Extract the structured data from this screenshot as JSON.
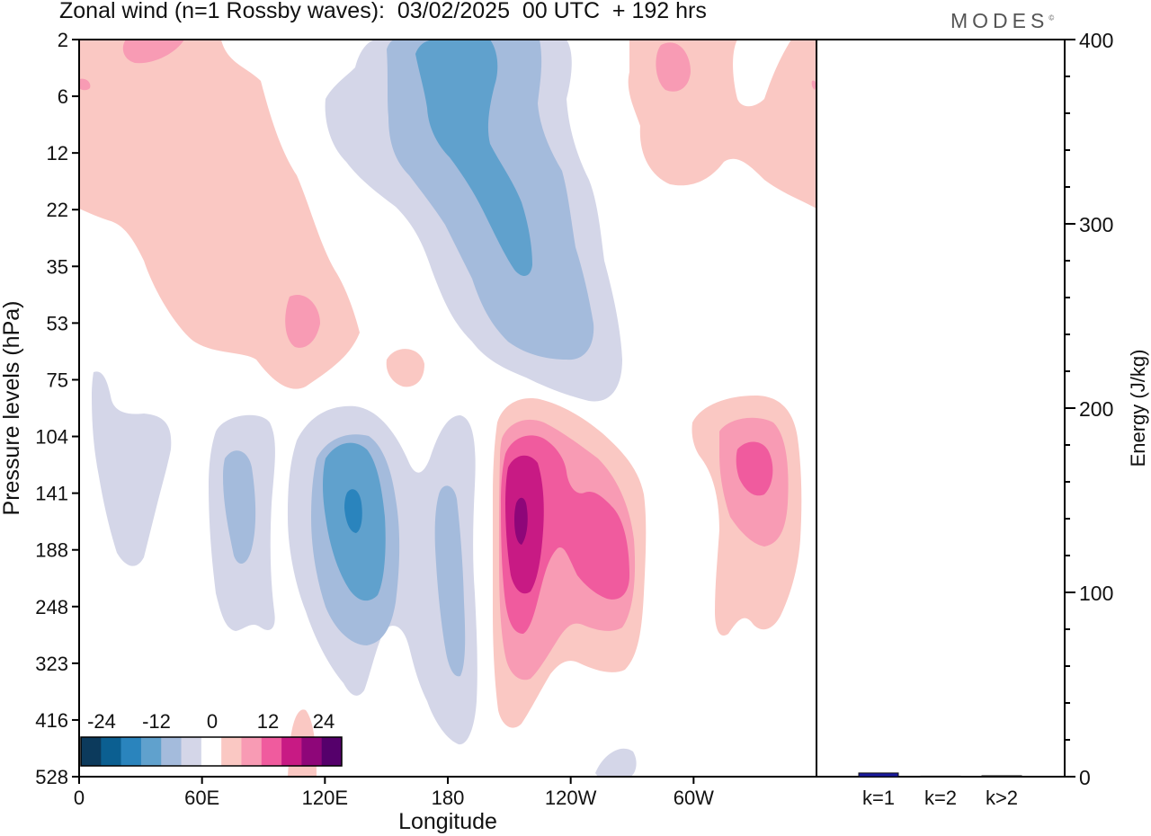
{
  "header": {
    "title": "Zonal wind (n=1 Rossby waves):  03/02/2025  00 UTC  + 192 hrs",
    "brand": "MODES",
    "brand_mark": "©"
  },
  "chart_data": [
    {
      "type": "heatmap",
      "title": "Zonal wind (n=1 Rossby waves):  03/02/2025  00 UTC  + 192 hrs",
      "xlabel": "Longitude",
      "ylabel": "Pressure levels (hPa)",
      "x_ticks": [
        "0",
        "60E",
        "120E",
        "180",
        "120W",
        "60W"
      ],
      "x_tick_degrees": [
        0,
        60,
        120,
        180,
        240,
        300
      ],
      "xlim": [
        0,
        360
      ],
      "y_ticks": [
        "2",
        "6",
        "12",
        "22",
        "35",
        "53",
        "75",
        "104",
        "141",
        "188",
        "248",
        "323",
        "416",
        "528"
      ],
      "colorbar": {
        "labels": [
          "-24",
          "-12",
          "0",
          "12",
          "24"
        ],
        "label_values": [
          -24,
          -12,
          0,
          12,
          24
        ],
        "levels": [
          -30,
          -24,
          -18,
          -12,
          -6,
          -3,
          3,
          6,
          12,
          18,
          24,
          30
        ],
        "colors": [
          "#0c3a5c",
          "#0b5f91",
          "#2a84bd",
          "#60a1cd",
          "#a4bbdc",
          "#d4d6e8",
          "#ffffff",
          "#fac8c3",
          "#f89bb4",
          "#f05b9e",
          "#c81a84",
          "#8e0679",
          "#55006b"
        ]
      },
      "contour_regions": [
        {
          "level": -6,
          "center_lon": 170,
          "center_level": "6",
          "note": "upper-level negative band"
        },
        {
          "level": -18,
          "center_lon": 185,
          "center_level": "12"
        },
        {
          "level": -24,
          "center_lon": 133,
          "center_level": "141"
        },
        {
          "level": 6,
          "center_lon": 70,
          "center_level": "12"
        },
        {
          "level": 12,
          "center_lon": 108,
          "center_level": "53"
        },
        {
          "level": 30,
          "center_lon": 215,
          "center_level": "141"
        },
        {
          "level": 18,
          "center_lon": 260,
          "center_level": "188"
        },
        {
          "level": 18,
          "center_lon": 330,
          "center_level": "104"
        }
      ]
    },
    {
      "type": "bar",
      "categories": [
        "k=1",
        "k=2",
        "k>2"
      ],
      "values": [
        2.0,
        0.3,
        0.5
      ],
      "colors": [
        "#1a1a9e",
        "#1a1a9e",
        "#1a1a9e"
      ],
      "ylabel": "Energy (J/kg)",
      "ylim": [
        0,
        400
      ],
      "y_ticks": [
        "0",
        "100",
        "200",
        "300",
        "400"
      ]
    }
  ]
}
